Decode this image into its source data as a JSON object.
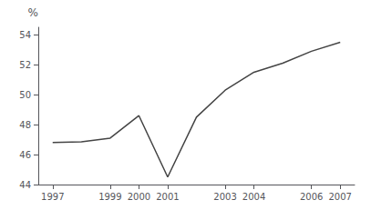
{
  "chart_data": {
    "type": "line",
    "x": [
      1997,
      1998,
      1999,
      2000,
      2001,
      2002,
      2003,
      2004,
      2005,
      2006,
      2007
    ],
    "values": [
      46.8,
      46.85,
      47.1,
      48.6,
      44.5,
      48.5,
      50.3,
      51.5,
      52.1,
      52.9,
      53.5
    ],
    "xlim": [
      1996.5,
      2007.5
    ],
    "ylim": [
      44,
      54.5
    ],
    "xticks": [
      1997,
      1999,
      2000,
      2001,
      2003,
      2004,
      2006,
      2007
    ],
    "yticks": [
      44,
      46,
      48,
      50,
      52,
      54
    ],
    "ylabel": "%",
    "color": "#444444",
    "grid": false
  }
}
